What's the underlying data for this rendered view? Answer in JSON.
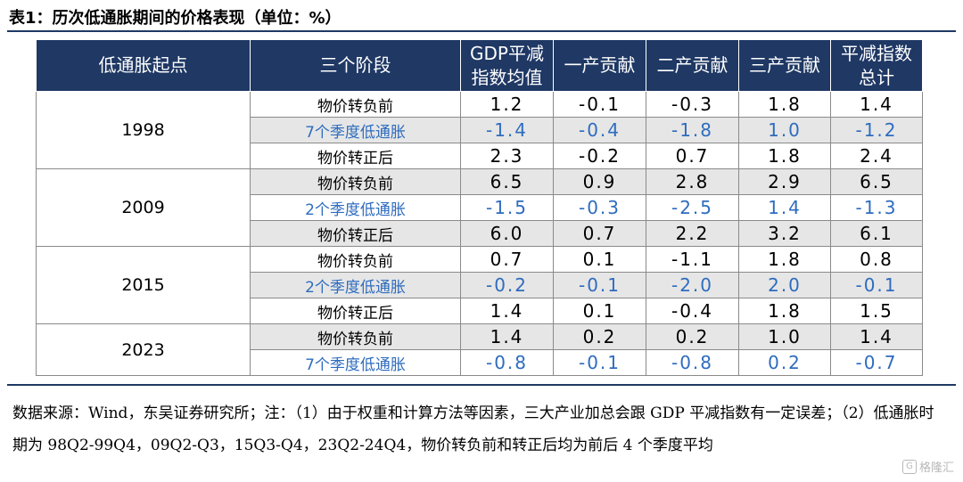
{
  "title": "表1：历次低通胀期间的价格表现（单位：%）",
  "headers": [
    "低通胀起点",
    "三个阶段",
    "GDP平减指数均值",
    "一产贡献",
    "二产贡献",
    "三产贡献",
    "平减指数总计"
  ],
  "groups": [
    {
      "start": "1998",
      "rows": [
        {
          "phase": "物价转负前",
          "values": [
            "1.2",
            "-0.1",
            "-0.3",
            "1.8",
            "1.4"
          ]
        },
        {
          "phase": "7个季度低通胀",
          "values": [
            "-1.4",
            "-0.4",
            "-1.8",
            "1.0",
            "-1.2"
          ]
        },
        {
          "phase": "物价转正后",
          "values": [
            "2.3",
            "-0.2",
            "0.7",
            "1.8",
            "2.4"
          ]
        }
      ]
    },
    {
      "start": "2009",
      "rows": [
        {
          "phase": "物价转负前",
          "values": [
            "6.5",
            "0.9",
            "2.8",
            "2.9",
            "6.5"
          ]
        },
        {
          "phase": "2个季度低通胀",
          "values": [
            "-1.5",
            "-0.3",
            "-2.5",
            "1.4",
            "-1.3"
          ]
        },
        {
          "phase": "物价转正后",
          "values": [
            "6.0",
            "0.7",
            "2.2",
            "3.2",
            "6.1"
          ]
        }
      ]
    },
    {
      "start": "2015",
      "rows": [
        {
          "phase": "物价转负前",
          "values": [
            "0.7",
            "0.1",
            "-1.1",
            "1.8",
            "0.8"
          ]
        },
        {
          "phase": "2个季度低通胀",
          "values": [
            "-0.2",
            "-0.1",
            "-2.0",
            "2.0",
            "-0.1"
          ]
        },
        {
          "phase": "物价转正后",
          "values": [
            "1.4",
            "0.1",
            "-0.4",
            "1.8",
            "1.5"
          ]
        }
      ]
    },
    {
      "start": "2023",
      "rows": [
        {
          "phase": "物价转负前",
          "values": [
            "1.4",
            "0.2",
            "0.2",
            "1.0",
            "1.4"
          ]
        },
        {
          "phase": "7个季度低通胀",
          "values": [
            "-0.8",
            "-0.1",
            "-0.8",
            "0.2",
            "-0.7"
          ]
        }
      ]
    }
  ],
  "note": "数据来源：Wind，东吴证券研究所；注：（1）由于权重和计算方法等因素，三大产业加总会跟 GDP 平减指数有一定误差；（2）低通胀时期为 98Q2-99Q4，09Q2-Q3，15Q3-Q4，23Q2-24Q4，物价转负前和转正后均为前后 4 个季度平均",
  "watermark": "格隆汇",
  "colors": {
    "header_bg": "#1f3864",
    "highlight_text": "#2e6cbf",
    "stripe": "#e6e6e6"
  }
}
